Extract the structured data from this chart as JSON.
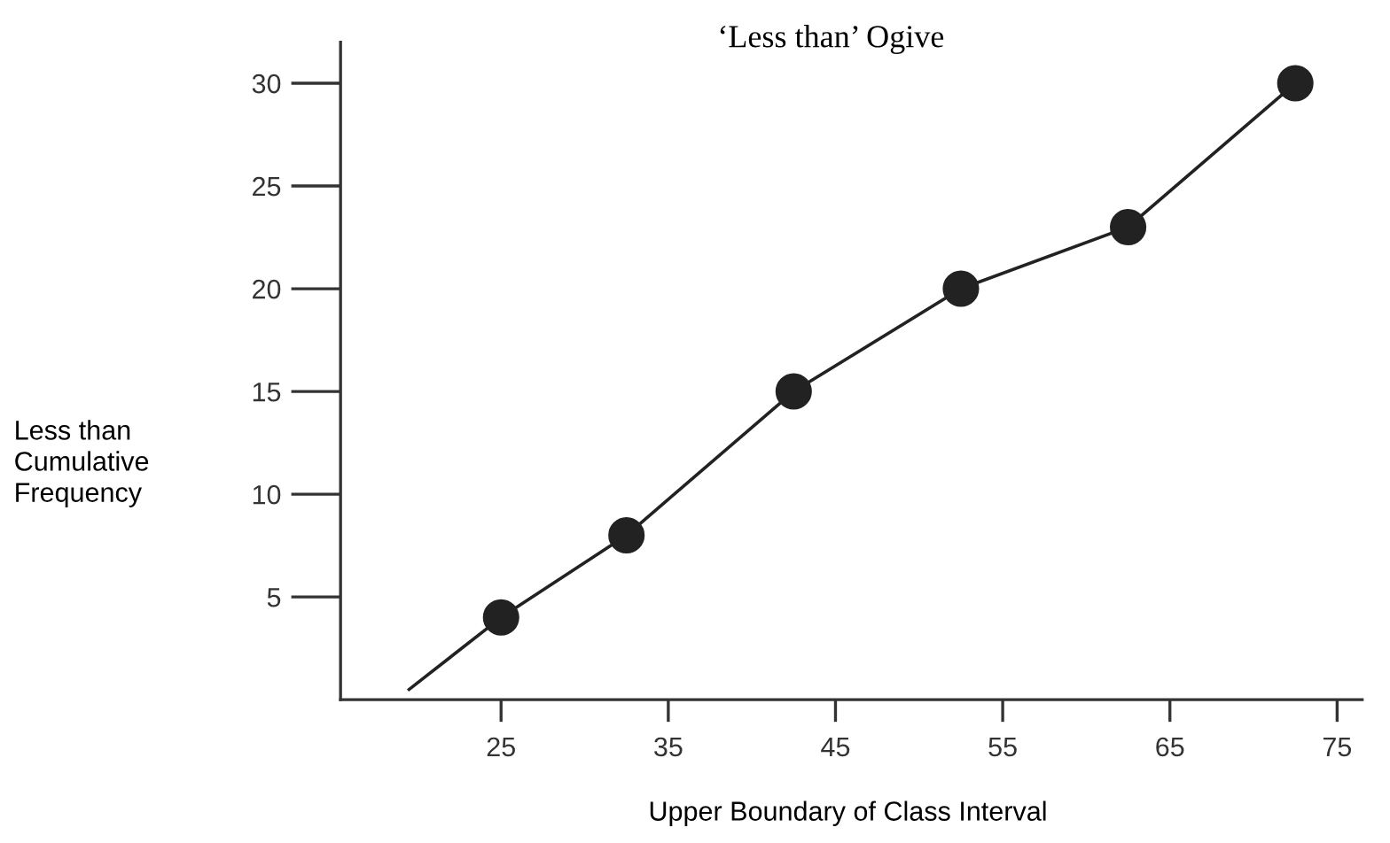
{
  "chart_data": {
    "type": "line",
    "title": "‘Less than’ Ogive",
    "xlabel": "Upper Boundary of Class Interval",
    "ylabel": "Less than\nCumulative\nFrequency",
    "series": [
      {
        "color": "#222222",
        "x": [
          19.5,
          25,
          32.5,
          42.5,
          52.5,
          62.5,
          72.5
        ],
        "values": [
          0.5,
          4,
          8,
          15,
          20,
          23,
          30
        ],
        "marker": "none"
      },
      {
        "type": "scatter",
        "color": "#222222",
        "x": [
          25,
          32.5,
          42.5,
          52.5,
          62.5,
          72.5
        ],
        "values": [
          4,
          8,
          15,
          20,
          23,
          30
        ],
        "marker": "circle"
      }
    ],
    "xlim": [
      15.4,
      76.5
    ],
    "ylim": [
      0,
      32
    ],
    "xticks": [
      25,
      35,
      45,
      55,
      65,
      75
    ],
    "yticks": [
      5,
      10,
      15,
      20,
      25,
      30
    ],
    "grid": false,
    "legend": false
  }
}
